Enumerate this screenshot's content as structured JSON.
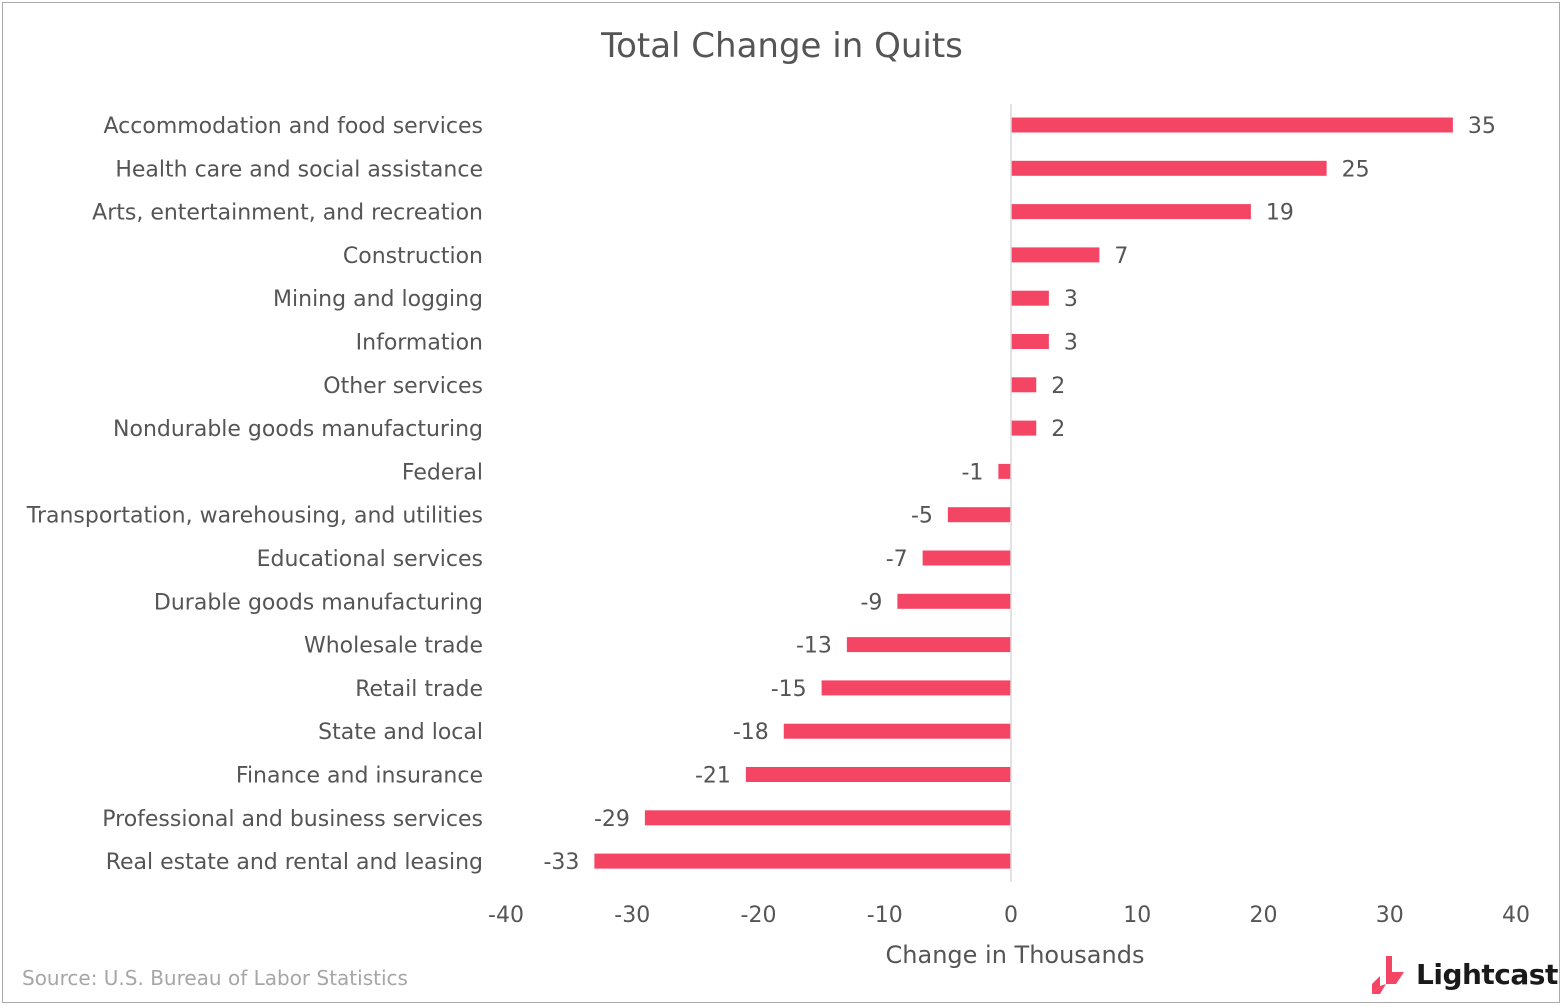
{
  "chart_data": {
    "type": "bar",
    "orientation": "horizontal",
    "title": "Total Change in Quits",
    "xlabel": "Change in Thousands",
    "ylabel": "",
    "xlim": [
      -40,
      40
    ],
    "xticks": [
      -40,
      -30,
      -20,
      -10,
      0,
      10,
      20,
      30,
      40
    ],
    "grid": false,
    "categories": [
      "Accommodation and food services",
      "Health care and social assistance",
      "Arts, entertainment, and recreation",
      "Construction",
      "Mining and logging",
      "Information",
      "Other services",
      "Nondurable goods manufacturing",
      "Federal",
      "Transportation, warehousing, and utilities",
      "Educational services",
      "Durable goods manufacturing",
      "Wholesale trade",
      "Retail trade",
      "State and local",
      "Finance and insurance",
      "Professional and business services",
      "Real estate and rental and leasing"
    ],
    "values": [
      35,
      25,
      19,
      7,
      3,
      3,
      2,
      2,
      -1,
      -5,
      -7,
      -9,
      -13,
      -15,
      -18,
      -21,
      -29,
      -33
    ],
    "bar_color": "#f44664",
    "data_labels": true
  },
  "footer": {
    "source": "Source:  U.S. Bureau of Labor Statistics",
    "brand": "Lightcast",
    "brand_icon": "lightcast-logo-icon",
    "brand_color": "#f44664"
  }
}
